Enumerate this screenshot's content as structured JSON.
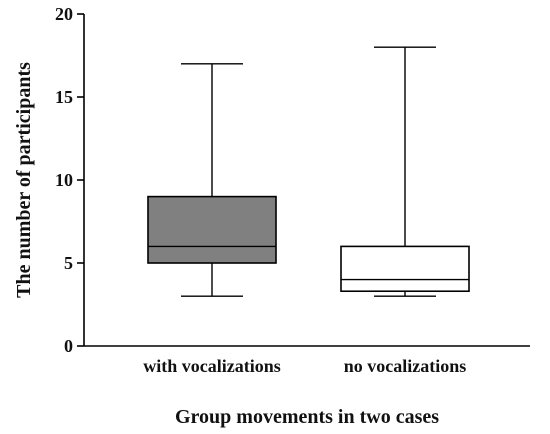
{
  "chart_data": {
    "type": "box",
    "title": "",
    "xlabel": "Group movements in two cases",
    "ylabel": "The number of participants",
    "ylim": [
      0,
      20
    ],
    "yticks": [
      {
        "value": 0,
        "label": "0"
      },
      {
        "value": 5,
        "label": "5"
      },
      {
        "value": 10,
        "label": "10"
      },
      {
        "value": 15,
        "label": "15"
      },
      {
        "value": 20,
        "label": "20"
      }
    ],
    "categories": [
      "with vocalizations",
      "no vocalizations"
    ],
    "boxes": [
      {
        "category": "with vocalizations",
        "min": 3,
        "q1": 5,
        "median": 6,
        "q3": 9,
        "max": 17,
        "fill": "#808080"
      },
      {
        "category": "no vocalizations",
        "min": 3,
        "q1": 3.3,
        "median": 4,
        "q3": 6,
        "max": 18,
        "fill": "#ffffff"
      }
    ],
    "grid": false
  }
}
